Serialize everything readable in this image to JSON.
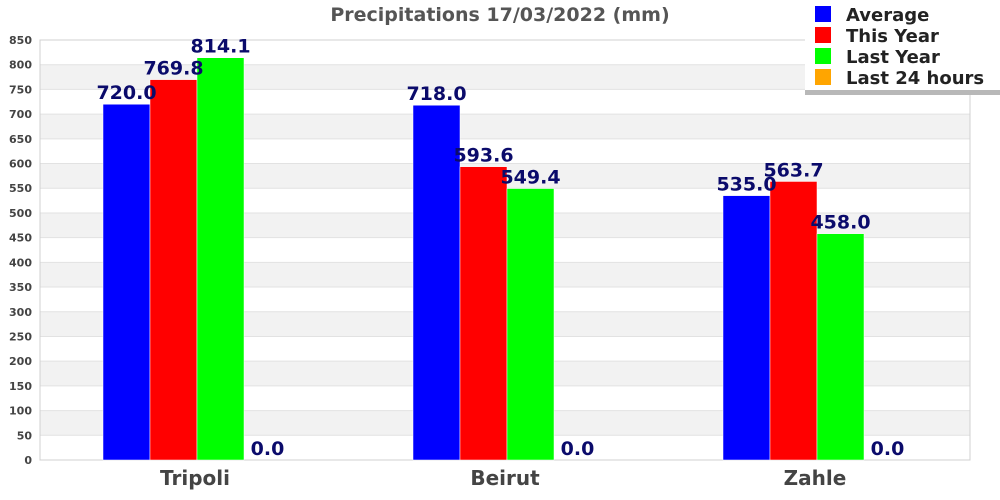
{
  "chart_data": {
    "type": "bar",
    "title": "Precipitations 17/03/2022 (mm)",
    "categories": [
      "Tripoli",
      "Beirut",
      "Zahle"
    ],
    "series": [
      {
        "name": "Average",
        "color": "#0000ff",
        "values": [
          720.0,
          718.0,
          535.0
        ],
        "labels": [
          "720.0",
          "718.0",
          "535.0"
        ]
      },
      {
        "name": "This Year",
        "color": "#ff0000",
        "values": [
          769.8,
          593.6,
          563.7
        ],
        "labels": [
          "769.8",
          "593.6",
          "563.7"
        ]
      },
      {
        "name": "Last Year",
        "color": "#00ff00",
        "values": [
          814.1,
          549.4,
          458.0
        ],
        "labels": [
          "814.1",
          "549.4",
          "458.0"
        ]
      },
      {
        "name": "Last 24 hours",
        "color": "#ffa500",
        "values": [
          0.0,
          0.0,
          0.0
        ],
        "labels": [
          "0.0",
          "0.0",
          "0.0"
        ]
      }
    ],
    "ylim": [
      0,
      850
    ],
    "yticks": [
      0,
      50,
      100,
      150,
      200,
      250,
      300,
      350,
      400,
      450,
      500,
      550,
      600,
      650,
      700,
      750,
      800,
      850
    ],
    "xlabel": "",
    "ylabel": "",
    "grid": true,
    "legend_position": "top-right"
  }
}
